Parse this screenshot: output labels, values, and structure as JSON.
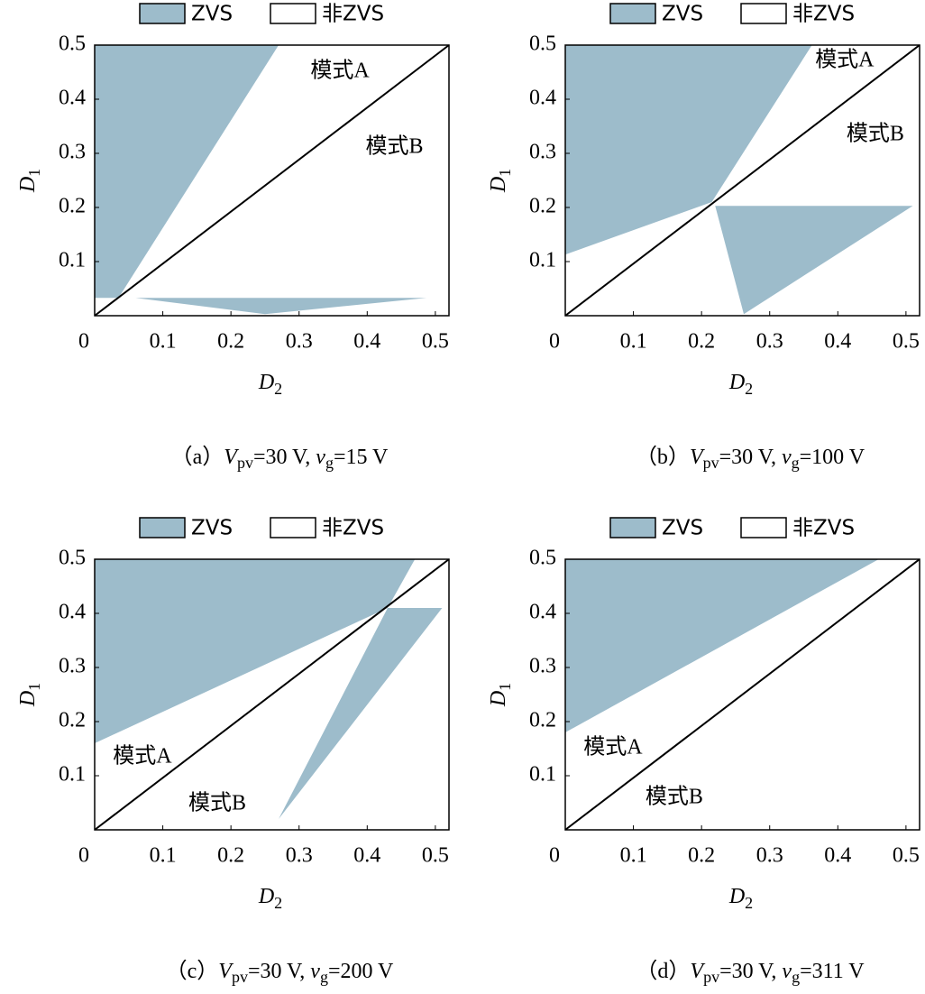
{
  "chart_data": [
    {
      "type": "region",
      "xlabel": {
        "text": "D",
        "sub": "2"
      },
      "ylabel": {
        "text": "D",
        "sub": "1"
      },
      "xlim": [
        0,
        0.52
      ],
      "ylim": [
        0,
        0.5
      ],
      "xticks": [
        0,
        0.1,
        0.2,
        0.3,
        0.4,
        0.5
      ],
      "yticks": [
        0.1,
        0.2,
        0.3,
        0.4,
        0.5
      ],
      "series": [
        {
          "name": "ZVS",
          "color": "#9dbccb",
          "regions": [
            {
              "x": [
                0,
                0.27,
                0.035,
                0
              ],
              "y": [
                0.5,
                0.5,
                0.033,
                0.033
              ]
            },
            {
              "x": [
                0.06,
                0.487,
                0.25
              ],
              "y": [
                0.033,
                0.033,
                0.003
              ]
            }
          ]
        },
        {
          "name": "非ZVS",
          "color": "#ffffff",
          "regions": []
        }
      ],
      "boundary": {
        "x": [
          0,
          0.52
        ],
        "y": [
          0,
          0.5
        ],
        "color": "#000000"
      },
      "annotations": [
        {
          "text": "模式A",
          "x": 0.36,
          "y": 0.45
        },
        {
          "text": "模式B",
          "x": 0.44,
          "y": 0.31
        }
      ],
      "caption": [
        {
          "text": "（a）",
          "format": "normal"
        },
        {
          "text": "V",
          "format": "italic"
        },
        {
          "text": "pv",
          "format": "sub"
        },
        {
          "text": "=30 V, ",
          "format": "normal"
        },
        {
          "text": "v",
          "format": "italic"
        },
        {
          "text": "g",
          "format": "sub"
        },
        {
          "text": "=15 V",
          "format": "normal"
        }
      ]
    },
    {
      "type": "region",
      "xlabel": {
        "text": "D",
        "sub": "2"
      },
      "ylabel": {
        "text": "D",
        "sub": "1"
      },
      "xlim": [
        0,
        0.52
      ],
      "ylim": [
        0,
        0.5
      ],
      "xticks": [
        0,
        0.1,
        0.2,
        0.3,
        0.4,
        0.5
      ],
      "yticks": [
        0.1,
        0.2,
        0.3,
        0.4,
        0.5
      ],
      "series": [
        {
          "name": "ZVS",
          "color": "#9dbccb",
          "regions": [
            {
              "x": [
                0,
                0.362,
                0.215,
                0
              ],
              "y": [
                0.5,
                0.5,
                0.21,
                0.113
              ]
            },
            {
              "x": [
                0.22,
                0.51,
                0.262
              ],
              "y": [
                0.203,
                0.203,
                0.003
              ]
            }
          ]
        },
        {
          "name": "非ZVS",
          "color": "#ffffff",
          "regions": []
        }
      ],
      "boundary": {
        "x": [
          0,
          0.52
        ],
        "y": [
          0,
          0.5
        ],
        "color": "#000000"
      },
      "annotations": [
        {
          "text": "模式A",
          "x": 0.41,
          "y": 0.47
        },
        {
          "text": "模式B",
          "x": 0.455,
          "y": 0.333
        }
      ],
      "caption": [
        {
          "text": "（b）",
          "format": "normal"
        },
        {
          "text": "V",
          "format": "italic"
        },
        {
          "text": "pv",
          "format": "sub"
        },
        {
          "text": "=30 V, ",
          "format": "normal"
        },
        {
          "text": "v",
          "format": "italic"
        },
        {
          "text": "g",
          "format": "sub"
        },
        {
          "text": "=100 V",
          "format": "normal"
        }
      ]
    },
    {
      "type": "region",
      "xlabel": {
        "text": "D",
        "sub": "2"
      },
      "ylabel": {
        "text": "D",
        "sub": "1"
      },
      "xlim": [
        0,
        0.52
      ],
      "ylim": [
        0,
        0.5
      ],
      "xticks": [
        0,
        0.1,
        0.2,
        0.3,
        0.4,
        0.5
      ],
      "yticks": [
        0.1,
        0.2,
        0.3,
        0.4,
        0.5
      ],
      "series": [
        {
          "name": "ZVS",
          "color": "#9dbccb",
          "regions": [
            {
              "x": [
                0,
                0.47,
                0.43,
                0
              ],
              "y": [
                0.5,
                0.5,
                0.41,
                0.16
              ]
            },
            {
              "x": [
                0.43,
                0.51,
                0.27
              ],
              "y": [
                0.41,
                0.41,
                0.02
              ]
            }
          ]
        },
        {
          "name": "非ZVS",
          "color": "#ffffff",
          "regions": []
        }
      ],
      "boundary": {
        "x": [
          0,
          0.52
        ],
        "y": [
          0,
          0.5
        ],
        "color": "#000000"
      },
      "annotations": [
        {
          "text": "模式A",
          "x": 0.07,
          "y": 0.133
        },
        {
          "text": "模式B",
          "x": 0.18,
          "y": 0.047
        }
      ],
      "caption": [
        {
          "text": "（c）",
          "format": "normal"
        },
        {
          "text": "V",
          "format": "italic"
        },
        {
          "text": "pv",
          "format": "sub"
        },
        {
          "text": "=30 V, ",
          "format": "normal"
        },
        {
          "text": "v",
          "format": "italic"
        },
        {
          "text": "g",
          "format": "sub"
        },
        {
          "text": "=200 V",
          "format": "normal"
        }
      ]
    },
    {
      "type": "region",
      "xlabel": {
        "text": "D",
        "sub": "2"
      },
      "ylabel": {
        "text": "D",
        "sub": "1"
      },
      "xlim": [
        0,
        0.52
      ],
      "ylim": [
        0,
        0.5
      ],
      "xticks": [
        0,
        0.1,
        0.2,
        0.3,
        0.4,
        0.5
      ],
      "yticks": [
        0.1,
        0.2,
        0.3,
        0.4,
        0.5
      ],
      "series": [
        {
          "name": "ZVS",
          "color": "#9dbccb",
          "regions": [
            {
              "x": [
                0,
                0.46,
                0
              ],
              "y": [
                0.5,
                0.5,
                0.18
              ]
            }
          ]
        },
        {
          "name": "非ZVS",
          "color": "#ffffff",
          "regions": []
        }
      ],
      "boundary": {
        "x": [
          0,
          0.52
        ],
        "y": [
          0,
          0.5
        ],
        "color": "#000000"
      },
      "annotations": [
        {
          "text": "模式A",
          "x": 0.07,
          "y": 0.15
        },
        {
          "text": "模式B",
          "x": 0.16,
          "y": 0.058
        }
      ],
      "caption": [
        {
          "text": "（d）",
          "format": "normal"
        },
        {
          "text": "V",
          "format": "italic"
        },
        {
          "text": "pv",
          "format": "sub"
        },
        {
          "text": "=30 V, ",
          "format": "normal"
        },
        {
          "text": "v",
          "format": "italic"
        },
        {
          "text": "g",
          "format": "sub"
        },
        {
          "text": "=311 V",
          "format": "normal"
        }
      ]
    }
  ]
}
